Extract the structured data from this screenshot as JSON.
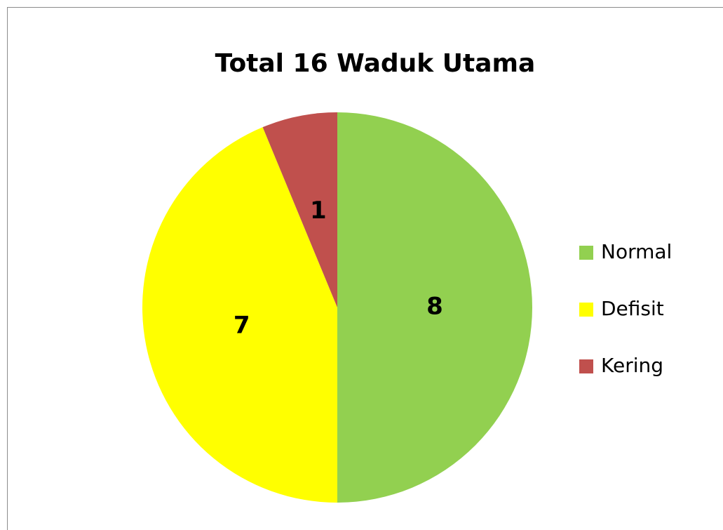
{
  "chart_data": {
    "type": "pie",
    "title": "Total 16 Waduk Utama",
    "categories": [
      "Normal",
      "Defisit",
      "Kering"
    ],
    "values": [
      8,
      7,
      1
    ],
    "colors": [
      "#92d050",
      "#ffff00",
      "#c0504d"
    ],
    "legend": "right"
  }
}
